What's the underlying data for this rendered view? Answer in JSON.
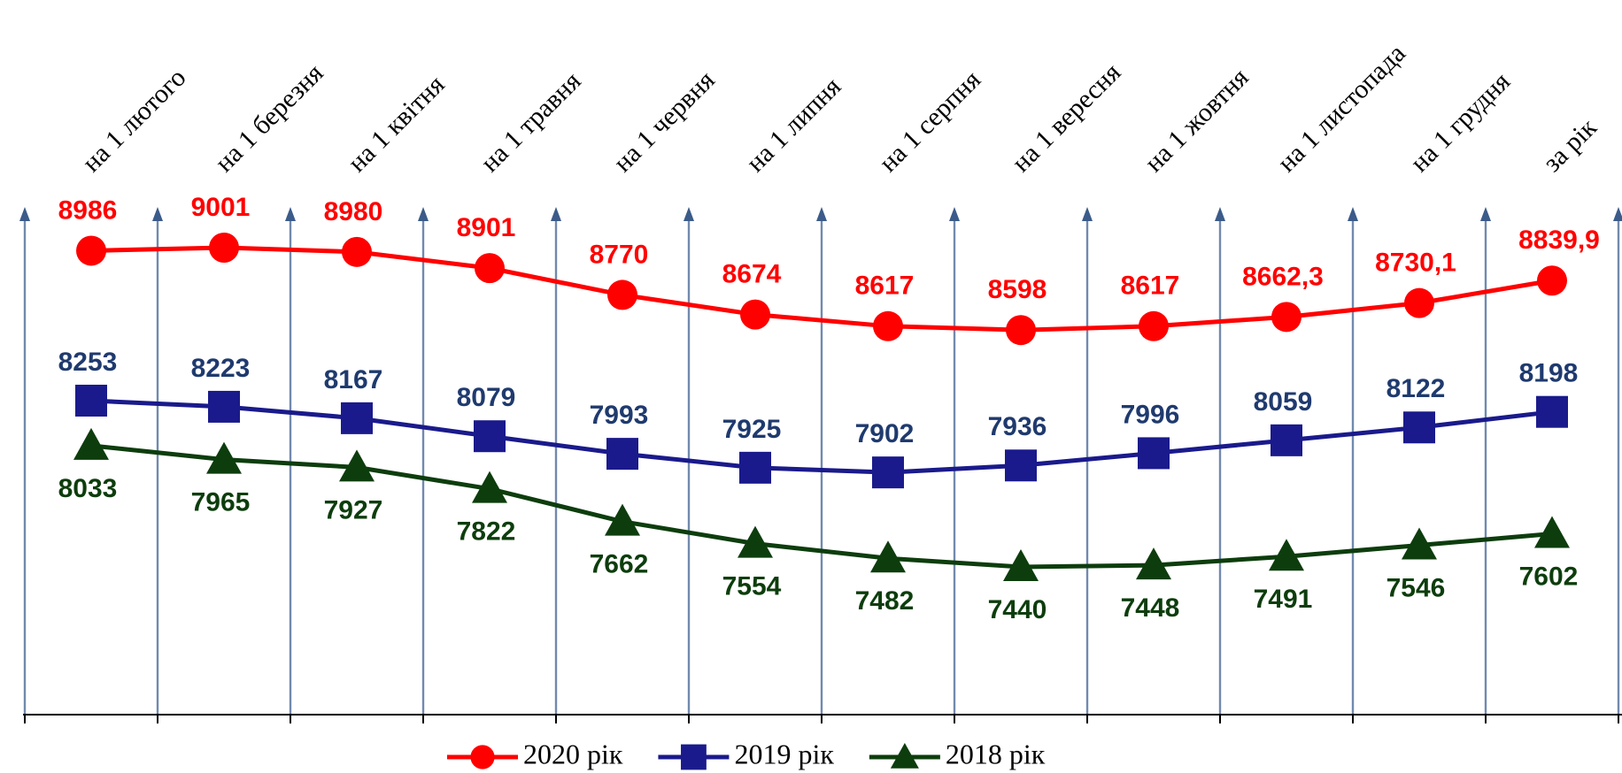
{
  "chart_data": {
    "type": "line",
    "categories": [
      "на 1 лютого",
      "на 1 березня",
      "на 1 квітня",
      "на 1 травня",
      "на 1 червня",
      "на 1 липня",
      "на 1 серпня",
      "на 1 вересня",
      "на 1 жовтня",
      "на 1 листопада",
      "на 1 грудня",
      "за рік"
    ],
    "series": [
      {
        "name": "2020 рік",
        "color": "#ff0000",
        "marker": "circle",
        "values": [
          8986,
          9001,
          8980,
          8901,
          8770,
          8674,
          8617,
          8598,
          8617,
          8662.3,
          8730.1,
          8839.9
        ],
        "value_labels": [
          "8986",
          "9001",
          "8980",
          "8901",
          "8770",
          "8674",
          "8617",
          "8598",
          "8617",
          "8662,3",
          "8730,1",
          "8839,9"
        ]
      },
      {
        "name": "2019 рік",
        "color": "#1a1a8c",
        "marker": "square",
        "values": [
          8253,
          8223,
          8167,
          8079,
          7993,
          7925,
          7902,
          7936,
          7996,
          8059,
          8122,
          8198
        ]
      },
      {
        "name": "2018 рік",
        "color": "#0d3d0d",
        "marker": "triangle",
        "values": [
          8033,
          7965,
          7927,
          7822,
          7662,
          7554,
          7482,
          7440,
          7448,
          7491,
          7546,
          7602
        ]
      }
    ],
    "legend": "bottom"
  }
}
